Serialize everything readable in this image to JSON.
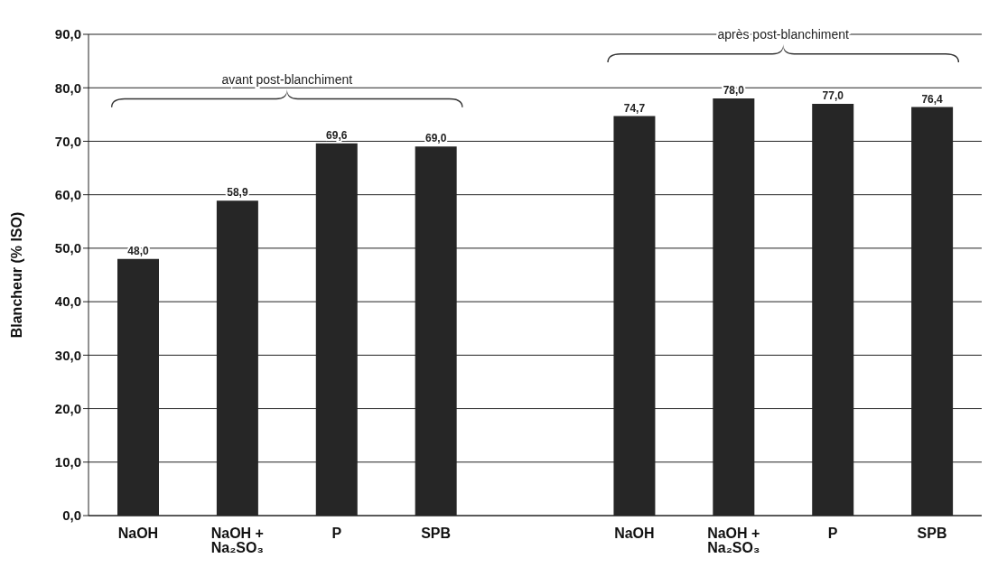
{
  "chart_data": {
    "type": "bar",
    "ylabel": "Blancheur (% ISO)",
    "categories": [
      "NaOH",
      "NaOH + Na₂SO₃",
      "P",
      "SPB",
      null,
      "NaOH",
      "NaOH + Na₂SO₃",
      "P",
      "SPB"
    ],
    "values": [
      48.0,
      58.9,
      69.6,
      69.0,
      null,
      74.7,
      78.0,
      77.0,
      76.4
    ],
    "value_labels": [
      "48,0",
      "58,9",
      "69,6",
      "69,0",
      null,
      "74,7",
      "78,0",
      "77,0",
      "76,4"
    ],
    "color": "#262626",
    "ylim": [
      0,
      90
    ],
    "yticks": [
      {
        "value": 0,
        "label": "0,0"
      },
      {
        "value": 10,
        "label": "10,0"
      },
      {
        "value": 20,
        "label": "20,0"
      },
      {
        "value": 30,
        "label": "30,0"
      },
      {
        "value": 40,
        "label": "40,0"
      },
      {
        "value": 50,
        "label": "50,0"
      },
      {
        "value": 60,
        "label": "60,0"
      },
      {
        "value": 70,
        "label": "70,0"
      },
      {
        "value": 80,
        "label": "80,0"
      },
      {
        "value": 90,
        "label": "90,0"
      }
    ],
    "grid": "y",
    "annotations": [
      "avant post-blanchiment",
      "après post-blanchiment"
    ]
  }
}
